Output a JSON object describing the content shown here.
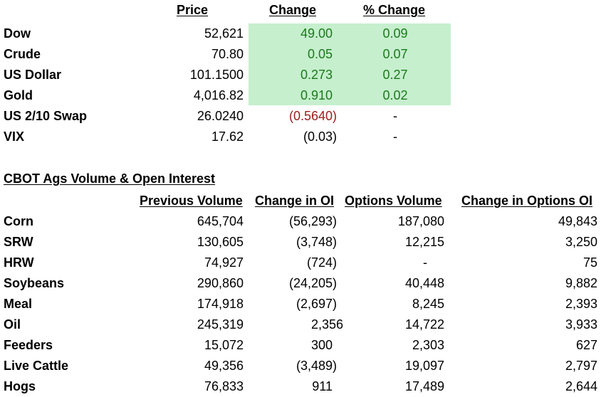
{
  "markets": {
    "headers": {
      "price": "Price",
      "change": "Change",
      "pct_change": "% Change"
    },
    "rows": [
      {
        "name": "Dow",
        "price": "52,621",
        "change": "49.00",
        "pct": "0.09"
      },
      {
        "name": "Crude",
        "price": "70.80",
        "change": "0.05",
        "pct": "0.07"
      },
      {
        "name": "US Dollar",
        "price": "101.1500",
        "change": "0.273",
        "pct": "0.27"
      },
      {
        "name": "Gold",
        "price": "4,016.82",
        "change": "0.910",
        "pct": "0.02"
      },
      {
        "name": "US 2/10 Swap",
        "price": "26.0240",
        "change": "(0.5640)",
        "pct": "-"
      },
      {
        "name": "VIX",
        "price": "17.62",
        "change": "(0.03)",
        "pct": "-"
      }
    ],
    "colors": {
      "positive": "#1a7a1a",
      "negative": "#9c1c1c",
      "highlight": "#c6efce"
    }
  },
  "cbot": {
    "title": "CBOT Ags Volume & Open Interest",
    "headers": {
      "prev_volume": "Previous Volume",
      "change_oi": "Change in OI",
      "options_volume": "Options Volume",
      "change_options_oi": "Change in Options OI"
    },
    "rows": [
      {
        "name": "Corn",
        "prev_volume": "645,704",
        "change_oi": "(56,293)",
        "options_volume": "187,080",
        "change_options_oi": "49,843"
      },
      {
        "name": "SRW",
        "prev_volume": "130,605",
        "change_oi": "(3,748)",
        "options_volume": "12,215",
        "change_options_oi": "3,250"
      },
      {
        "name": "HRW",
        "prev_volume": "74,927",
        "change_oi": "(724)",
        "options_volume": "-",
        "change_options_oi": "75"
      },
      {
        "name": "Soybeans",
        "prev_volume": "290,860",
        "change_oi": "(24,205)",
        "options_volume": "40,448",
        "change_options_oi": "9,882"
      },
      {
        "name": "Meal",
        "prev_volume": "174,918",
        "change_oi": "(2,697)",
        "options_volume": "8,245",
        "change_options_oi": "2,393"
      },
      {
        "name": "Oil",
        "prev_volume": "245,319",
        "change_oi": "2,356",
        "options_volume": "14,722",
        "change_options_oi": "3,933"
      },
      {
        "name": "Feeders",
        "prev_volume": "15,072",
        "change_oi": "300",
        "options_volume": "2,303",
        "change_options_oi": "627"
      },
      {
        "name": "Live Cattle",
        "prev_volume": "49,356",
        "change_oi": "(3,489)",
        "options_volume": "19,097",
        "change_options_oi": "2,797"
      },
      {
        "name": "Hogs",
        "prev_volume": "76,833",
        "change_oi": "911",
        "options_volume": "17,489",
        "change_options_oi": "2,644"
      }
    ]
  }
}
